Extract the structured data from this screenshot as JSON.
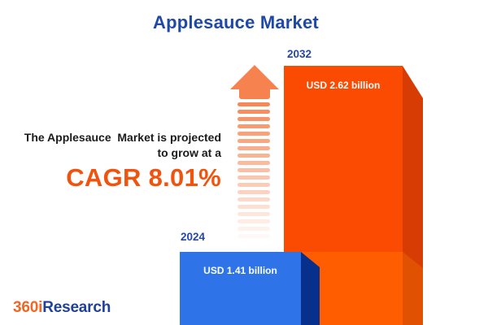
{
  "title": "Applesauce Market",
  "headline": {
    "line1": "The Applesauce  Market is projected",
    "line2": "to grow at a",
    "cagr": "CAGR 8.01%"
  },
  "bars": [
    {
      "year": "2024",
      "value_label": "USD 1.41 billion"
    },
    {
      "year": "2032",
      "value_label": "USD 2.62 billion"
    }
  ],
  "logo": {
    "prefix": "360i",
    "suffix": "Research"
  },
  "colors": {
    "title_blue": "#1F49A8",
    "cagr_orange": "#F0530E",
    "bar_2024_face": "#2E74E8",
    "bar_2024_side": "#07308C",
    "bar_2032_face_top": "#FB4A02",
    "bar_2032_side_top": "#D73C05",
    "bar_2032_face_bottom": "#FF5D00",
    "bar_2032_side_bottom": "#E05102",
    "arrow_orange": "#F5824F",
    "logo_orange": "#F26522",
    "logo_blue": "#20409A",
    "text_dark": "#1B1B1D"
  },
  "chart_data": {
    "type": "bar",
    "title": "Applesauce Market",
    "categories": [
      "2024",
      "2032"
    ],
    "values": [
      1.41,
      2.62
    ],
    "unit": "USD billion",
    "value_labels": [
      "USD 1.41 billion",
      "USD 2.62 billion"
    ],
    "cagr_percent": 8.01,
    "annotation": "The Applesauce Market is projected to grow at a CAGR 8.01%",
    "legend": "none",
    "grid": false,
    "bar_colors": [
      "#2E74E8",
      "#FB4A02"
    ]
  }
}
